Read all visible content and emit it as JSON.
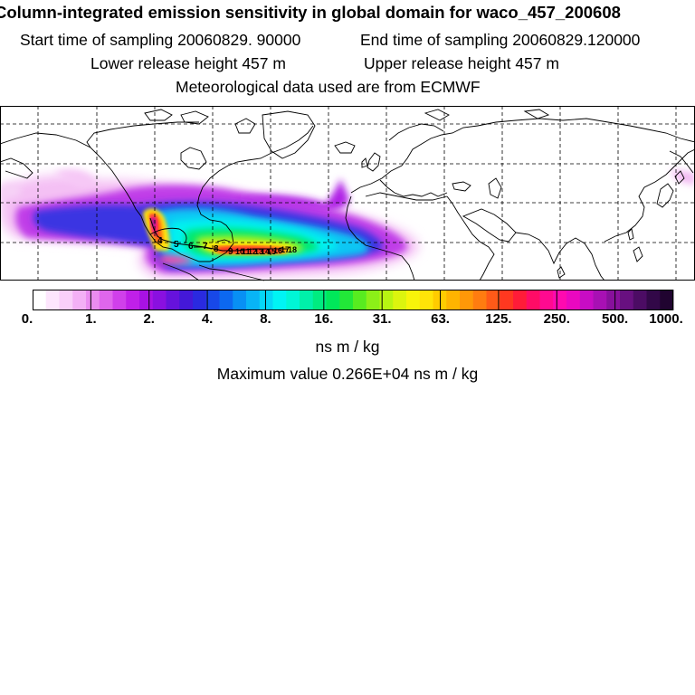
{
  "header": {
    "title": "Column-integrated emission sensitivity in global domain for waco_457_200608",
    "start_time": "Start time of sampling 20060829. 90000",
    "end_time": "End time of sampling 20060829.120000",
    "lower_height": "Lower release height  457 m",
    "upper_height": "Upper release height  457 m",
    "met_data": "Meteorological data used are from ECMWF"
  },
  "colorbar": {
    "tick_labels": [
      "0.",
      "1.",
      "2.",
      "4.",
      "8.",
      "16.",
      "31.",
      "63.",
      "125.",
      "250.",
      "500.",
      "1000."
    ],
    "unit": "ns m / kg",
    "colors": [
      "#ffffff",
      "#fde6fd",
      "#f9cff9",
      "#f3b0f5",
      "#ea8cf0",
      "#df66ec",
      "#d040ea",
      "#c020e8",
      "#a812e4",
      "#8a10e0",
      "#6612dc",
      "#4418d8",
      "#2a2ae0",
      "#1848e8",
      "#0c68f0",
      "#0890f4",
      "#08b4f6",
      "#06d6f6",
      "#00f4f4",
      "#00f6d6",
      "#00f0aa",
      "#00ec80",
      "#00e85a",
      "#22e838",
      "#58ec20",
      "#8cf018",
      "#b8f412",
      "#dcf40e",
      "#f8f40a",
      "#ffe408",
      "#ffcc00",
      "#ffb400",
      "#ff9808",
      "#ff7c10",
      "#ff5a18",
      "#ff3820",
      "#ff1c38",
      "#ff0c66",
      "#ff0a90",
      "#ff0ab0",
      "#ea08c0",
      "#c80cc4",
      "#a810b4",
      "#88109c",
      "#681080",
      "#4c0c64",
      "#320848",
      "#200430"
    ]
  },
  "stats": {
    "max_value": "Maximum value  0.266E+04 ns m / kg"
  },
  "map": {
    "trajectory_labels": [
      "4",
      "5",
      "6",
      "7",
      "8",
      "9",
      "10",
      "11",
      "12",
      "13",
      "14",
      "15",
      "16",
      "17",
      "18"
    ]
  }
}
